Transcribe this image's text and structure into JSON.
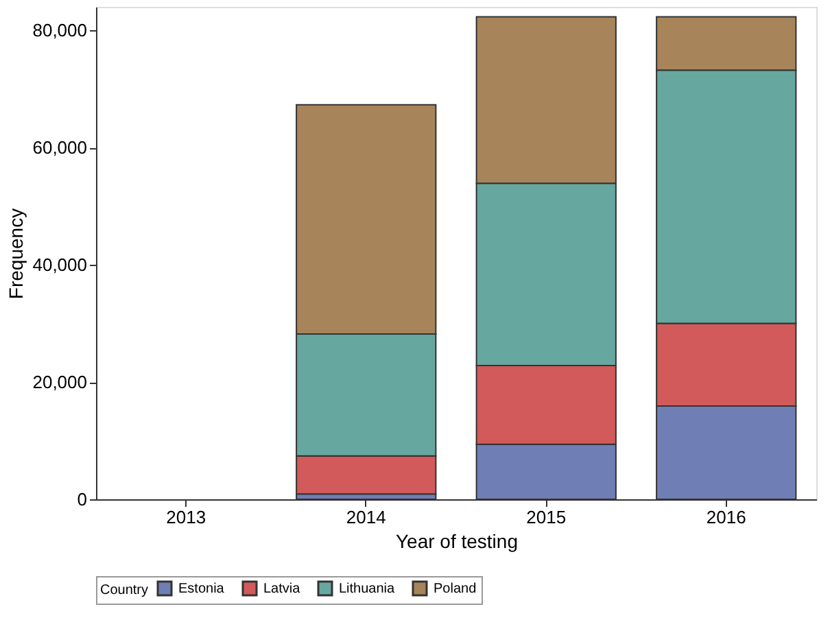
{
  "chart_data": {
    "type": "bar",
    "stacked": true,
    "xlabel": "Year of testing",
    "ylabel": "Frequency",
    "legend_title": "Country",
    "legend": "bottom",
    "grid": false,
    "categories": [
      "2013",
      "2014",
      "2015",
      "2016"
    ],
    "ylim": [
      0,
      84000
    ],
    "yticks": [
      {
        "value": 0,
        "label": "0"
      },
      {
        "value": 20000,
        "label": "20,000"
      },
      {
        "value": 40000,
        "label": "40,000"
      },
      {
        "value": 60000,
        "label": "60,000"
      },
      {
        "value": 80000,
        "label": "80,000"
      }
    ],
    "series": [
      {
        "name": "Estonia",
        "color": "#6f7fb5",
        "values": [
          null,
          900,
          9400,
          15900
        ]
      },
      {
        "name": "Latvia",
        "color": "#d35a5a",
        "values": [
          null,
          6500,
          13400,
          14100
        ]
      },
      {
        "name": "Lithuania",
        "color": "#66a8a0",
        "values": [
          null,
          20800,
          31100,
          43200
        ]
      },
      {
        "name": "Poland",
        "color": "#a8845a",
        "values": [
          null,
          39100,
          28400,
          9100
        ]
      }
    ]
  }
}
